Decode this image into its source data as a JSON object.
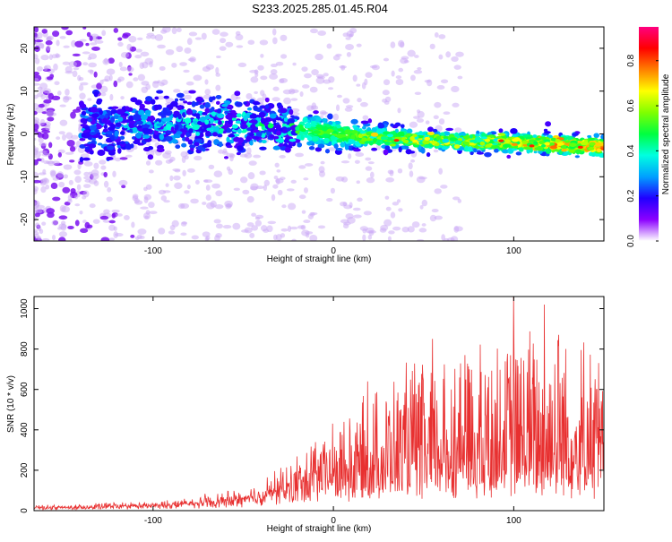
{
  "figure": {
    "title": "S233.2025.285.01.45.R04"
  },
  "chart_data": [
    {
      "type": "heatmap",
      "xlabel": "Height of straight line (km)",
      "ylabel": "Frequency (Hz)",
      "xlim": [
        -166,
        150
      ],
      "ylim": [
        -25,
        25
      ],
      "xticks": [
        -100,
        0,
        100
      ],
      "yticks": [
        -20,
        -10,
        0,
        10,
        20
      ],
      "xtick_labels": [
        "-100",
        "0",
        "100"
      ],
      "ytick_labels": [
        "-20",
        "-10",
        "0",
        "10",
        "20"
      ],
      "colorbar": {
        "label": "Normalized spectral amplitude",
        "range": [
          0,
          0.95
        ],
        "ticks": [
          0.0,
          0.2,
          0.4,
          0.6,
          0.8
        ],
        "tick_labels": [
          "0.0",
          "0.2",
          "0.4",
          "0.6",
          "0.8"
        ],
        "colormap": [
          "#ffffff",
          "#8b00ff",
          "#2000ff",
          "#00a0ff",
          "#00ffe0",
          "#00ff40",
          "#80ff00",
          "#ffff00",
          "#ff8000",
          "#ff0000",
          "#ff0080"
        ]
      },
      "ridge": [
        {
          "x": -130,
          "freq": 1.5,
          "spread": 6
        },
        {
          "x": -100,
          "freq": 2.0,
          "spread": 5
        },
        {
          "x": -60,
          "freq": 2.5,
          "spread": 5.5
        },
        {
          "x": -20,
          "freq": 1.0,
          "spread": 4
        },
        {
          "x": 15,
          "freq": -0.5,
          "spread": 2.5
        },
        {
          "x": 50,
          "freq": -1.5,
          "spread": 2
        },
        {
          "x": 100,
          "freq": -2.0,
          "spread": 2
        },
        {
          "x": 150,
          "freq": -3.0,
          "spread": 2
        }
      ]
    },
    {
      "type": "line",
      "xlabel": "Height of straight line (km)",
      "ylabel": "SNR (10 * v/v)",
      "xlim": [
        -166,
        150
      ],
      "ylim": [
        0,
        1060
      ],
      "xticks": [
        -100,
        0,
        100
      ],
      "yticks": [
        0,
        200,
        400,
        600,
        800,
        1000
      ],
      "xtick_labels": [
        "-100",
        "0",
        "100"
      ],
      "ytick_labels": [
        "0",
        "200",
        "400",
        "600",
        "800",
        "1000"
      ],
      "color": "#e83030",
      "envelope": {
        "x": [
          -166,
          -140,
          -120,
          -100,
          -80,
          -60,
          -40,
          -20,
          0,
          20,
          40,
          60,
          80,
          100,
          120,
          140,
          150
        ],
        "baseline": [
          15,
          15,
          20,
          25,
          30,
          40,
          70,
          100,
          130,
          150,
          160,
          170,
          175,
          180,
          175,
          170,
          170
        ],
        "peak": [
          25,
          30,
          45,
          40,
          70,
          90,
          140,
          280,
          450,
          580,
          720,
          780,
          820,
          900,
          1000,
          900,
          700
        ]
      },
      "highlights": [
        {
          "x": 19,
          "y": 640
        },
        {
          "x": 55,
          "y": 850
        },
        {
          "x": 73,
          "y": 770
        },
        {
          "x": 100,
          "y": 1060
        },
        {
          "x": 117,
          "y": 1020
        },
        {
          "x": 125,
          "y": 870
        },
        {
          "x": 146,
          "y": 600
        }
      ]
    }
  ]
}
